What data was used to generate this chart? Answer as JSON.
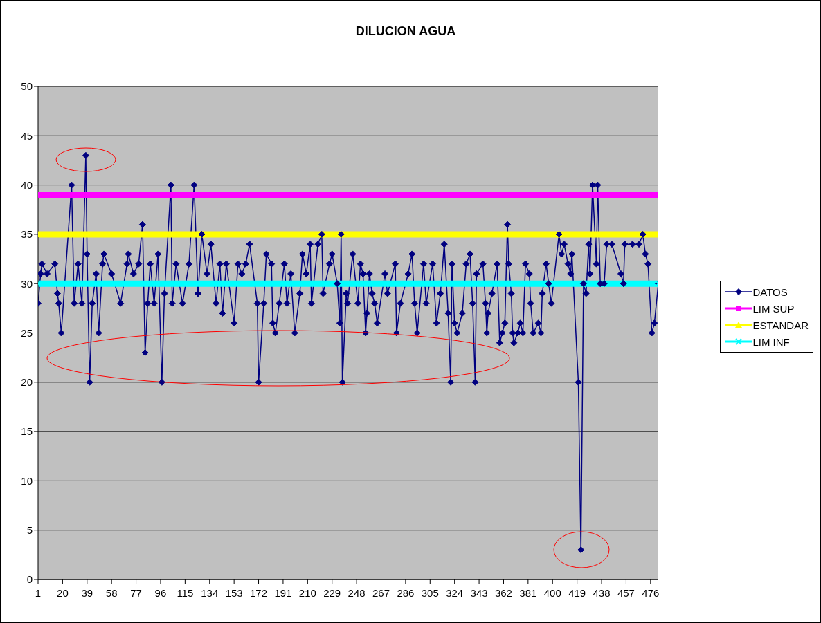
{
  "chart_data": {
    "type": "line",
    "title": "DILUCION AGUA",
    "xlim": [
      1,
      482
    ],
    "xticks": [
      1,
      20,
      39,
      58,
      77,
      96,
      115,
      134,
      153,
      172,
      191,
      210,
      229,
      248,
      267,
      286,
      305,
      324,
      343,
      362,
      381,
      400,
      419,
      438,
      457,
      476
    ],
    "ylim": [
      0,
      50
    ],
    "yticks": [
      0,
      5,
      10,
      15,
      20,
      25,
      30,
      35,
      40,
      45,
      50
    ],
    "grid": "y",
    "legend": "right",
    "series": [
      {
        "name": "DATOS",
        "color": "#000080",
        "marker": "diamond",
        "x": [
          1,
          3,
          4,
          8,
          14,
          16,
          17,
          19,
          27,
          29,
          32,
          35,
          38,
          39,
          41,
          43,
          46,
          48,
          51,
          52,
          58,
          65,
          70,
          71,
          75,
          79,
          82,
          84,
          86,
          88,
          91,
          94,
          97,
          99,
          104,
          105,
          108,
          113,
          118,
          122,
          125,
          128,
          132,
          135,
          139,
          142,
          144,
          147,
          153,
          156,
          159,
          162,
          165,
          171,
          172,
          176,
          178,
          182,
          183,
          185,
          188,
          192,
          194,
          197,
          200,
          204,
          206,
          209,
          212,
          213,
          218,
          221,
          222,
          227,
          229,
          233,
          235,
          236,
          237,
          240,
          241,
          245,
          249,
          251,
          253,
          255,
          256,
          258,
          260,
          262,
          264,
          270,
          272,
          278,
          279,
          282,
          288,
          291,
          293,
          295,
          300,
          302,
          307,
          310,
          313,
          316,
          319,
          321,
          322,
          324,
          326,
          330,
          333,
          336,
          338,
          340,
          341,
          346,
          348,
          349,
          350,
          353,
          357,
          359,
          361,
          363,
          365,
          366,
          368,
          369,
          370,
          373,
          375,
          377,
          379,
          382,
          383,
          385,
          389,
          391,
          392,
          395,
          397,
          399,
          405,
          407,
          409,
          412,
          414,
          415,
          420,
          422,
          424,
          426,
          428,
          429,
          431,
          434,
          435,
          437,
          440,
          442,
          446,
          453,
          455,
          456,
          462,
          467,
          470,
          472,
          474,
          477,
          479,
          482
        ],
        "values": [
          28,
          31,
          32,
          31,
          32,
          29,
          28,
          25,
          40,
          28,
          32,
          28,
          43,
          33,
          20,
          28,
          31,
          25,
          32,
          33,
          31,
          28,
          32,
          33,
          31,
          32,
          36,
          23,
          28,
          32,
          28,
          33,
          20,
          29,
          40,
          28,
          32,
          28,
          32,
          40,
          29,
          35,
          31,
          34,
          28,
          32,
          27,
          32,
          26,
          32,
          31,
          32,
          34,
          28,
          20,
          28,
          33,
          32,
          26,
          25,
          28,
          32,
          28,
          31,
          25,
          29,
          33,
          31,
          34,
          28,
          34,
          35,
          29,
          32,
          33,
          30,
          26,
          35,
          20,
          29,
          28,
          33,
          28,
          32,
          31,
          25,
          27,
          31,
          29,
          28,
          26,
          31,
          29,
          32,
          25,
          28,
          31,
          33,
          28,
          25,
          32,
          28,
          32,
          26,
          29,
          34,
          27,
          20,
          32,
          26,
          25,
          27,
          32,
          33,
          28,
          20,
          31,
          32,
          28,
          25,
          27,
          29,
          32,
          24,
          25,
          26,
          36,
          32,
          29,
          25,
          24,
          25,
          26,
          25,
          32,
          31,
          28,
          25,
          26,
          25,
          29,
          32,
          30,
          28,
          35,
          33,
          34,
          32,
          31,
          33,
          20,
          3,
          30,
          29,
          34,
          31,
          40,
          32,
          40,
          30,
          30,
          34,
          34,
          31,
          30,
          34,
          34,
          34,
          35,
          33,
          32,
          25,
          26,
          30
        ]
      },
      {
        "name": "LIM SUP",
        "color": "#ff00ff",
        "marker": "square",
        "x": [
          1,
          482
        ],
        "values": [
          39,
          39
        ]
      },
      {
        "name": "ESTANDAR",
        "color": "#ffff00",
        "marker": "triangle",
        "x": [
          1,
          482
        ],
        "values": [
          35,
          35
        ]
      },
      {
        "name": "LIM INF",
        "color": "#00ffff",
        "marker": "cross",
        "x": [
          1,
          482
        ],
        "values": [
          30,
          30
        ]
      }
    ]
  }
}
